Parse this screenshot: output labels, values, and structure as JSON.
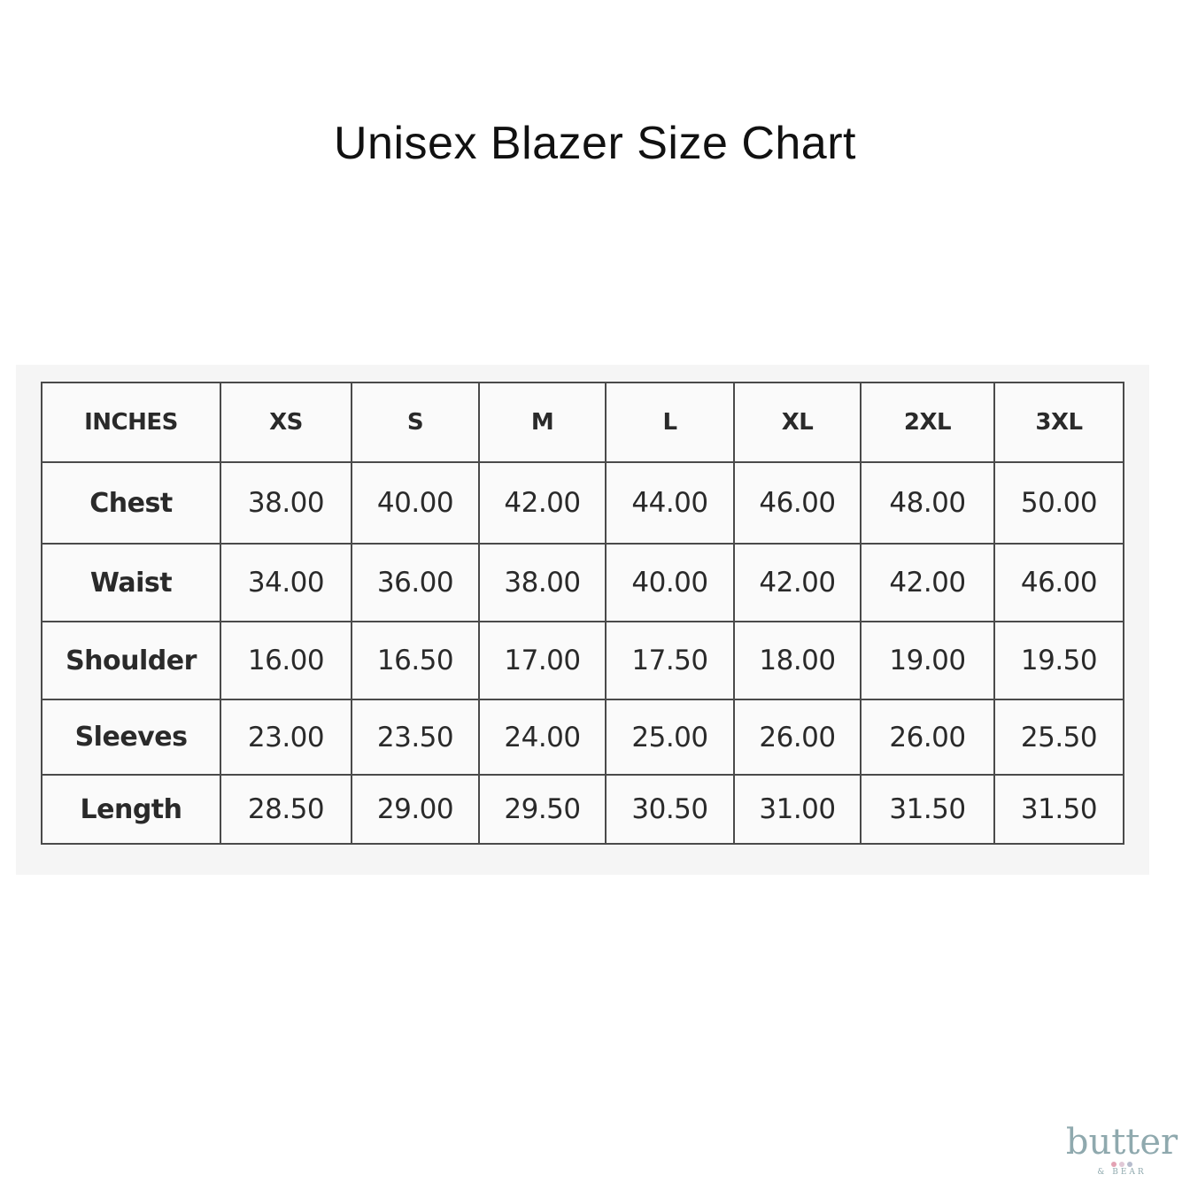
{
  "title": "Unisex Blazer Size Chart",
  "table": {
    "header": [
      "INCHES",
      "XS",
      "S",
      "M",
      "L",
      "XL",
      "2XL",
      "3XL"
    ],
    "rows": [
      {
        "label": "Chest",
        "values": [
          "38.00",
          "40.00",
          "42.00",
          "44.00",
          "46.00",
          "48.00",
          "50.00"
        ]
      },
      {
        "label": "Waist",
        "values": [
          "34.00",
          "36.00",
          "38.00",
          "40.00",
          "42.00",
          "42.00",
          "46.00"
        ]
      },
      {
        "label": "Shoulder",
        "values": [
          "16.00",
          "16.50",
          "17.00",
          "17.50",
          "18.00",
          "19.00",
          "19.50"
        ]
      },
      {
        "label": "Sleeves",
        "values": [
          "23.00",
          "23.50",
          "24.00",
          "25.00",
          "26.00",
          "26.00",
          "25.50"
        ]
      },
      {
        "label": "Length",
        "values": [
          "28.50",
          "29.00",
          "29.50",
          "30.50",
          "31.00",
          "31.50",
          "31.50"
        ]
      }
    ]
  },
  "logo": {
    "word": "butter",
    "sub": "& BEAR",
    "colors": {
      "text": "#8fa9ae",
      "dots": [
        "#e3a2b3",
        "#e0c8d6",
        "#b6bccd"
      ]
    }
  }
}
